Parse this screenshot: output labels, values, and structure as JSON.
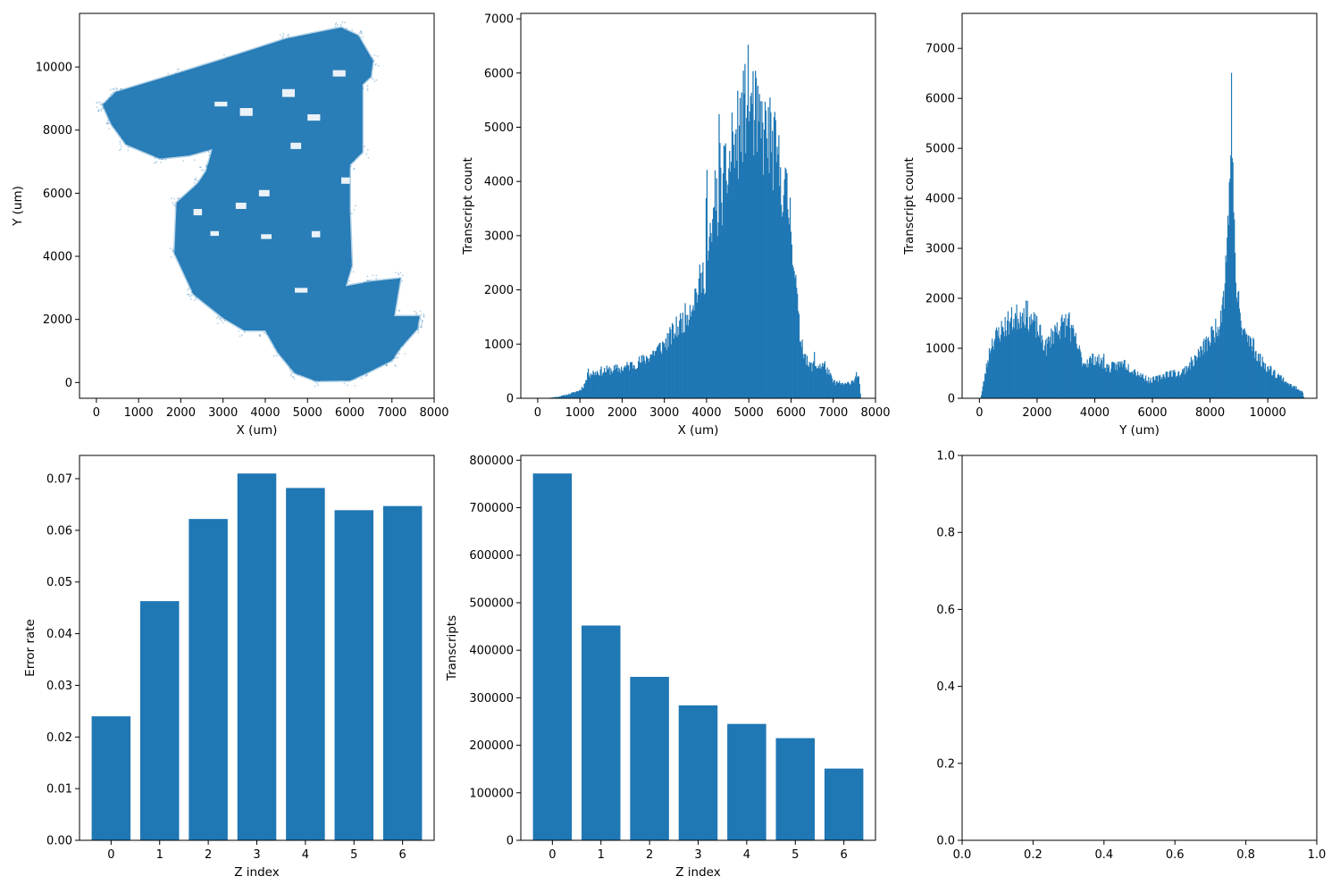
{
  "figure": {
    "background": "#ffffff",
    "accent": "#1f77b4"
  },
  "chart_data": [
    {
      "id": "scatter_xy",
      "type": "scatter",
      "xlabel": "X (um)",
      "ylabel": "Y (um)",
      "xlim": [
        -400,
        8000
      ],
      "ylim": [
        -500,
        11700
      ],
      "xticks": [
        0,
        1000,
        2000,
        3000,
        4000,
        5000,
        6000,
        7000,
        8000
      ],
      "yticks": [
        0,
        2000,
        4000,
        6000,
        8000,
        10000
      ],
      "color": "#1f77b4",
      "alpha": 0.25,
      "description_note": "dense transcript point cloud",
      "regions": [
        [
          [
            150,
            8800
          ],
          [
            450,
            9200
          ],
          [
            1800,
            9750
          ],
          [
            3000,
            10250
          ],
          [
            4500,
            10900
          ],
          [
            5800,
            11250
          ],
          [
            6200,
            11000
          ],
          [
            6550,
            10200
          ],
          [
            6500,
            9700
          ],
          [
            6300,
            9450
          ],
          [
            6300,
            7300
          ],
          [
            6000,
            6900
          ],
          [
            6000,
            5500
          ],
          [
            6050,
            3700
          ],
          [
            5900,
            3050
          ],
          [
            6500,
            3200
          ],
          [
            7200,
            3300
          ],
          [
            7050,
            2100
          ],
          [
            7650,
            2100
          ],
          [
            7600,
            1700
          ],
          [
            7200,
            1100
          ],
          [
            7000,
            700
          ],
          [
            6400,
            300
          ],
          [
            6000,
            60
          ],
          [
            5200,
            50
          ],
          [
            4700,
            300
          ],
          [
            4300,
            950
          ],
          [
            4000,
            1650
          ],
          [
            3500,
            1650
          ],
          [
            3000,
            2050
          ],
          [
            2300,
            2800
          ],
          [
            1850,
            4100
          ],
          [
            1900,
            5700
          ],
          [
            2400,
            6300
          ],
          [
            2600,
            6700
          ],
          [
            2750,
            7400
          ],
          [
            2200,
            7200
          ],
          [
            1500,
            7100
          ],
          [
            700,
            7550
          ],
          [
            350,
            8200
          ]
        ]
      ],
      "holes": [
        [
          [
            3400,
            8700
          ],
          [
            3700,
            8700
          ],
          [
            3700,
            8450
          ],
          [
            3400,
            8450
          ]
        ],
        [
          [
            2800,
            8900
          ],
          [
            3100,
            8900
          ],
          [
            3100,
            8750
          ],
          [
            2800,
            8750
          ]
        ],
        [
          [
            4400,
            9300
          ],
          [
            4700,
            9300
          ],
          [
            4700,
            9050
          ],
          [
            4400,
            9050
          ]
        ],
        [
          [
            5000,
            8500
          ],
          [
            5300,
            8500
          ],
          [
            5300,
            8300
          ],
          [
            5000,
            8300
          ]
        ],
        [
          [
            3850,
            6100
          ],
          [
            4100,
            6100
          ],
          [
            4100,
            5900
          ],
          [
            3850,
            5900
          ]
        ],
        [
          [
            3300,
            5700
          ],
          [
            3550,
            5700
          ],
          [
            3550,
            5500
          ],
          [
            3300,
            5500
          ]
        ],
        [
          [
            2700,
            4800
          ],
          [
            2900,
            4800
          ],
          [
            2900,
            4650
          ],
          [
            2700,
            4650
          ]
        ],
        [
          [
            3900,
            4700
          ],
          [
            4150,
            4700
          ],
          [
            4150,
            4550
          ],
          [
            3900,
            4550
          ]
        ],
        [
          [
            5100,
            4800
          ],
          [
            5300,
            4800
          ],
          [
            5300,
            4600
          ],
          [
            5100,
            4600
          ]
        ],
        [
          [
            2300,
            5500
          ],
          [
            2500,
            5500
          ],
          [
            2500,
            5300
          ],
          [
            2300,
            5300
          ]
        ],
        [
          [
            4600,
            7600
          ],
          [
            4850,
            7600
          ],
          [
            4850,
            7400
          ],
          [
            4600,
            7400
          ]
        ],
        [
          [
            5600,
            9900
          ],
          [
            5900,
            9900
          ],
          [
            5900,
            9700
          ],
          [
            5600,
            9700
          ]
        ],
        [
          [
            4700,
            3000
          ],
          [
            5000,
            3000
          ],
          [
            5000,
            2850
          ],
          [
            4700,
            2850
          ]
        ],
        [
          [
            5800,
            6500
          ],
          [
            6000,
            6500
          ],
          [
            6000,
            6300
          ],
          [
            5800,
            6300
          ]
        ]
      ]
    },
    {
      "id": "hist_x",
      "type": "bar",
      "subtype": "histogram",
      "xlabel": "X (um)",
      "ylabel": "Transcript count",
      "xlim": [
        -400,
        8000
      ],
      "ylim": [
        0,
        7100
      ],
      "xticks": [
        0,
        1000,
        2000,
        3000,
        4000,
        5000,
        6000,
        7000,
        8000
      ],
      "yticks": [
        0,
        1000,
        2000,
        3000,
        4000,
        5000,
        6000,
        7000
      ],
      "range": [
        0,
        7650
      ],
      "bins": 400,
      "color": "#1f77b4",
      "profile": [
        [
          0,
          0
        ],
        [
          300,
          10
        ],
        [
          500,
          30
        ],
        [
          800,
          90
        ],
        [
          1000,
          150
        ],
        [
          1100,
          250
        ],
        [
          1200,
          450
        ],
        [
          1500,
          500
        ],
        [
          2000,
          550
        ],
        [
          2500,
          700
        ],
        [
          3000,
          1000
        ],
        [
          3500,
          1500
        ],
        [
          4000,
          2400
        ],
        [
          4200,
          3400
        ],
        [
          4500,
          4200
        ],
        [
          4800,
          5000
        ],
        [
          5000,
          5600
        ],
        [
          5200,
          5000
        ],
        [
          5500,
          4800
        ],
        [
          5800,
          4000
        ],
        [
          6000,
          3300
        ],
        [
          6100,
          2200
        ],
        [
          6200,
          1200
        ],
        [
          6400,
          600
        ],
        [
          6800,
          600
        ],
        [
          7000,
          300
        ],
        [
          7300,
          250
        ],
        [
          7600,
          400
        ],
        [
          7650,
          0
        ]
      ],
      "peaks": [
        [
          3650,
          2100
        ],
        [
          3400,
          1600
        ],
        [
          4000,
          4800
        ],
        [
          4200,
          5100
        ],
        [
          4300,
          5700
        ],
        [
          4600,
          5400
        ],
        [
          4800,
          5900
        ],
        [
          4950,
          6500
        ],
        [
          5050,
          6200
        ],
        [
          5200,
          5900
        ],
        [
          5350,
          5200
        ],
        [
          5550,
          5000
        ],
        [
          5700,
          4600
        ],
        [
          6000,
          3600
        ],
        [
          6550,
          900
        ],
        [
          7550,
          600
        ],
        [
          1200,
          700
        ],
        [
          2800,
          700
        ]
      ]
    },
    {
      "id": "hist_y",
      "type": "bar",
      "subtype": "histogram",
      "xlabel": "Y (um)",
      "ylabel": "Transcript count",
      "xlim": [
        -600,
        11700
      ],
      "ylim": [
        0,
        7700
      ],
      "xticks": [
        0,
        2000,
        4000,
        6000,
        8000,
        10000
      ],
      "yticks": [
        0,
        1000,
        2000,
        3000,
        4000,
        5000,
        6000,
        7000
      ],
      "range": [
        0,
        11250
      ],
      "bins": 450,
      "color": "#1f77b4",
      "profile": [
        [
          0,
          0
        ],
        [
          50,
          20
        ],
        [
          200,
          500
        ],
        [
          400,
          1100
        ],
        [
          800,
          1400
        ],
        [
          1200,
          1600
        ],
        [
          1600,
          1700
        ],
        [
          2000,
          1400
        ],
        [
          2300,
          1000
        ],
        [
          2600,
          1350
        ],
        [
          3000,
          1500
        ],
        [
          3300,
          1200
        ],
        [
          3600,
          700
        ],
        [
          4000,
          800
        ],
        [
          4500,
          600
        ],
        [
          5000,
          700
        ],
        [
          5500,
          500
        ],
        [
          5900,
          350
        ],
        [
          6200,
          400
        ],
        [
          6500,
          500
        ],
        [
          7000,
          500
        ],
        [
          7500,
          800
        ],
        [
          8000,
          1200
        ],
        [
          8300,
          1500
        ],
        [
          8500,
          2200
        ],
        [
          8700,
          4500
        ],
        [
          8800,
          3800
        ],
        [
          8900,
          2200
        ],
        [
          9100,
          1400
        ],
        [
          9400,
          1100
        ],
        [
          9700,
          800
        ],
        [
          10000,
          600
        ],
        [
          10500,
          400
        ],
        [
          10800,
          250
        ],
        [
          11200,
          150
        ],
        [
          11250,
          0
        ]
      ],
      "peaks": [
        [
          8750,
          7250
        ],
        [
          8720,
          6300
        ],
        [
          8800,
          5300
        ],
        [
          8660,
          4300
        ],
        [
          1500,
          2300
        ],
        [
          3100,
          2200
        ],
        [
          2700,
          1850
        ],
        [
          8900,
          2700
        ],
        [
          7900,
          1200
        ],
        [
          9500,
          1450
        ],
        [
          10200,
          750
        ],
        [
          4300,
          1000
        ],
        [
          5000,
          1000
        ],
        [
          1000,
          1900
        ]
      ]
    },
    {
      "id": "bar_error_rate",
      "type": "bar",
      "xlabel": "Z index",
      "ylabel": "Error rate",
      "categories": [
        "0",
        "1",
        "2",
        "3",
        "4",
        "5",
        "6"
      ],
      "values": [
        0.024,
        0.0463,
        0.0622,
        0.071,
        0.0682,
        0.0639,
        0.0647
      ],
      "ylim": [
        0,
        0.0745
      ],
      "yticks": [
        0.0,
        0.01,
        0.02,
        0.03,
        0.04,
        0.05,
        0.06,
        0.07
      ],
      "ytick_labels": [
        "0.00",
        "0.01",
        "0.02",
        "0.03",
        "0.04",
        "0.05",
        "0.06",
        "0.07"
      ],
      "color": "#1f77b4"
    },
    {
      "id": "bar_transcripts",
      "type": "bar",
      "xlabel": "Z index",
      "ylabel": "Transcripts",
      "categories": [
        "0",
        "1",
        "2",
        "3",
        "4",
        "5",
        "6"
      ],
      "values": [
        772000,
        452000,
        344000,
        284000,
        245000,
        215000,
        151000
      ],
      "ylim": [
        0,
        810000
      ],
      "yticks": [
        0,
        100000,
        200000,
        300000,
        400000,
        500000,
        600000,
        700000,
        800000
      ],
      "color": "#1f77b4"
    },
    {
      "id": "empty_axes",
      "type": "scatter",
      "xlabel": "",
      "ylabel": "",
      "xlim": [
        0,
        1
      ],
      "ylim": [
        0,
        1
      ],
      "xticks": [
        0.0,
        0.2,
        0.4,
        0.6,
        0.8,
        1.0
      ],
      "yticks": [
        0.0,
        0.2,
        0.4,
        0.6,
        0.8,
        1.0
      ],
      "xtick_labels": [
        "0.0",
        "0.2",
        "0.4",
        "0.6",
        "0.8",
        "1.0"
      ],
      "ytick_labels": [
        "0.0",
        "0.2",
        "0.4",
        "0.6",
        "0.8",
        "1.0"
      ]
    }
  ]
}
